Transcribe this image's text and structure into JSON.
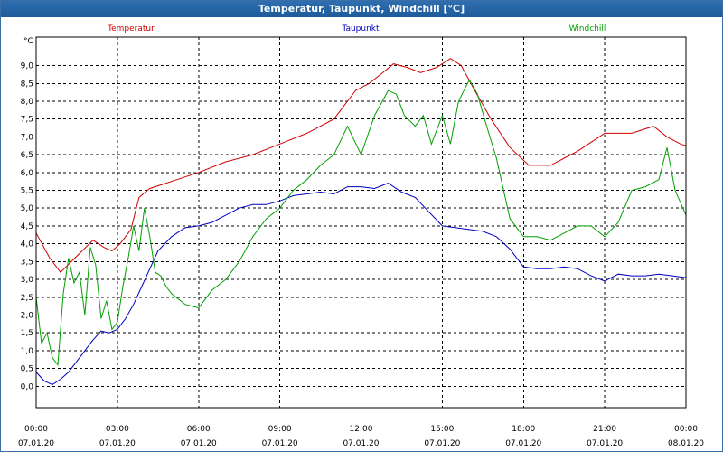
{
  "window": {
    "title": "Temperatur, Taupunkt, Windchill [°C]"
  },
  "chart_data": {
    "type": "line",
    "title": "Temperatur, Taupunkt, Windchill [°C]",
    "ylabel": "°C",
    "xlabel": "",
    "ylim": [
      -0.6,
      9.8
    ],
    "xlim": [
      0,
      24
    ],
    "grid": true,
    "legend": "top",
    "yticks": [
      "0,0",
      "0,5",
      "1,0",
      "1,5",
      "2,0",
      "2,5",
      "3,0",
      "3,5",
      "4,0",
      "4,5",
      "5,0",
      "5,5",
      "6,0",
      "6,5",
      "7,0",
      "7,5",
      "8,0",
      "8,5",
      "9,0"
    ],
    "yticks_values": [
      0,
      0.5,
      1,
      1.5,
      2,
      2.5,
      3,
      3.5,
      4,
      4.5,
      5,
      5.5,
      6,
      6.5,
      7,
      7.5,
      8,
      8.5,
      9
    ],
    "xticks": [
      {
        "time": "00:00",
        "date": "07.01.20",
        "hours": 0
      },
      {
        "time": "03:00",
        "date": "07.01.20",
        "hours": 3
      },
      {
        "time": "06:00",
        "date": "07.01.20",
        "hours": 6
      },
      {
        "time": "09:00",
        "date": "07.01.20",
        "hours": 9
      },
      {
        "time": "12:00",
        "date": "07.01.20",
        "hours": 12
      },
      {
        "time": "15:00",
        "date": "07.01.20",
        "hours": 15
      },
      {
        "time": "18:00",
        "date": "07.01.20",
        "hours": 18
      },
      {
        "time": "21:00",
        "date": "07.01.20",
        "hours": 21
      },
      {
        "time": "00:00",
        "date": "08.01.20",
        "hours": 24
      }
    ],
    "series": [
      {
        "name": "Temperatur",
        "color": "#d00000",
        "x": [
          0,
          0.5,
          0.9,
          1.3,
          1.7,
          2.1,
          2.5,
          2.8,
          3.1,
          3.5,
          3.8,
          4.2,
          4.6,
          5.2,
          6,
          7,
          8,
          9,
          10,
          11,
          11.8,
          12.3,
          12.8,
          13.2,
          13.7,
          14.2,
          14.8,
          15.3,
          15.7,
          16.2,
          16.8,
          17.5,
          18.2,
          19,
          20,
          21,
          22,
          22.8,
          23.3,
          23.8,
          24
        ],
        "values": [
          4.3,
          3.6,
          3.2,
          3.5,
          3.8,
          4.1,
          3.9,
          3.8,
          4.0,
          4.4,
          5.3,
          5.55,
          5.65,
          5.8,
          6.0,
          6.3,
          6.5,
          6.8,
          7.1,
          7.5,
          8.3,
          8.5,
          8.8,
          9.05,
          8.95,
          8.8,
          8.95,
          9.2,
          9.0,
          8.3,
          7.5,
          6.7,
          6.2,
          6.2,
          6.6,
          7.1,
          7.1,
          7.3,
          7.0,
          6.8,
          6.75
        ]
      },
      {
        "name": "Taupunkt",
        "color": "#0000c0",
        "x": [
          0,
          0.3,
          0.6,
          0.9,
          1.2,
          1.5,
          1.8,
          2.1,
          2.4,
          2.7,
          3.0,
          3.3,
          3.6,
          3.9,
          4.2,
          4.5,
          5,
          5.5,
          6,
          6.5,
          7,
          7.5,
          8,
          8.5,
          9,
          9.5,
          10,
          10.5,
          11,
          11.5,
          12,
          12.5,
          13,
          13.5,
          14,
          14.5,
          15,
          15.5,
          16,
          16.5,
          17,
          17.5,
          18,
          18.5,
          19,
          19.5,
          20,
          20.5,
          21,
          21.5,
          22,
          22.5,
          23,
          23.5,
          24
        ],
        "values": [
          0.4,
          0.15,
          0.05,
          0.2,
          0.4,
          0.7,
          1.0,
          1.3,
          1.55,
          1.5,
          1.6,
          1.9,
          2.3,
          2.8,
          3.3,
          3.8,
          4.2,
          4.45,
          4.5,
          4.6,
          4.8,
          5.0,
          5.1,
          5.1,
          5.2,
          5.35,
          5.4,
          5.45,
          5.4,
          5.6,
          5.6,
          5.55,
          5.7,
          5.45,
          5.3,
          4.9,
          4.5,
          4.45,
          4.4,
          4.35,
          4.2,
          3.85,
          3.35,
          3.3,
          3.3,
          3.35,
          3.3,
          3.1,
          2.95,
          3.15,
          3.1,
          3.1,
          3.15,
          3.1,
          3.05
        ]
      },
      {
        "name": "Windchill",
        "color": "#00a000",
        "x": [
          0,
          0.2,
          0.4,
          0.6,
          0.8,
          1.0,
          1.2,
          1.4,
          1.6,
          1.8,
          2.0,
          2.2,
          2.4,
          2.6,
          2.8,
          3.0,
          3.2,
          3.4,
          3.6,
          3.8,
          4.0,
          4.2,
          4.4,
          4.6,
          4.8,
          5.0,
          5.5,
          6.0,
          6.5,
          7.0,
          7.5,
          8.0,
          8.5,
          9.0,
          9.5,
          10.0,
          10.5,
          11.0,
          11.5,
          12.0,
          12.5,
          13.0,
          13.3,
          13.6,
          14.0,
          14.3,
          14.6,
          15.0,
          15.3,
          15.6,
          16.0,
          16.3,
          16.6,
          17.0,
          17.5,
          18.0,
          18.5,
          19.0,
          19.5,
          20.0,
          20.5,
          21.0,
          21.5,
          22.0,
          22.5,
          23.0,
          23.3,
          23.6,
          24.0
        ],
        "values": [
          2.5,
          1.2,
          1.5,
          0.8,
          0.6,
          2.6,
          3.6,
          2.9,
          3.2,
          2.0,
          3.9,
          3.4,
          1.9,
          2.4,
          1.6,
          1.8,
          2.8,
          3.6,
          4.5,
          3.8,
          5.0,
          4.2,
          3.2,
          3.1,
          2.8,
          2.6,
          2.3,
          2.2,
          2.7,
          3.0,
          3.5,
          4.2,
          4.7,
          5.0,
          5.5,
          5.8,
          6.2,
          6.5,
          7.3,
          6.5,
          7.6,
          8.3,
          8.2,
          7.6,
          7.3,
          7.6,
          6.8,
          7.6,
          6.8,
          8.0,
          8.6,
          8.2,
          7.4,
          6.4,
          4.7,
          4.2,
          4.2,
          4.1,
          4.3,
          4.5,
          4.5,
          4.2,
          4.6,
          5.5,
          5.6,
          5.8,
          6.7,
          5.5,
          4.8
        ]
      }
    ]
  }
}
